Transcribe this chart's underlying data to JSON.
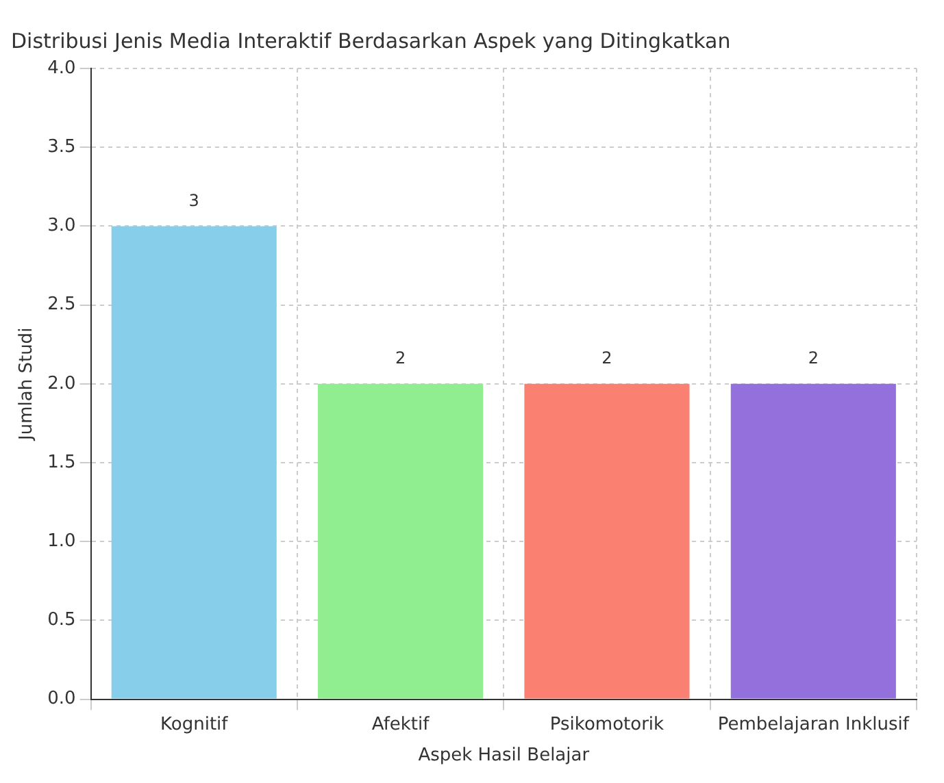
{
  "chart_data": {
    "type": "bar",
    "title": "Distribusi Jenis Media Interaktif Berdasarkan Aspek yang Ditingkatkan",
    "xlabel": "Aspek Hasil Belajar",
    "ylabel": "Jumlah Studi",
    "categories": [
      "Kognitif",
      "Afektif",
      "Psikomotorik",
      "Pembelajaran Inklusif"
    ],
    "values": [
      3,
      2,
      2,
      2
    ],
    "colors": [
      "#87ceeb",
      "#90ee90",
      "#fa8072",
      "#9370db"
    ],
    "ylim": [
      0,
      4
    ],
    "yticks": [
      {
        "value": 0,
        "label": "0.0"
      },
      {
        "value": 0.5,
        "label": "0.5"
      },
      {
        "value": 1,
        "label": "1.0"
      },
      {
        "value": 1.5,
        "label": "1.5"
      },
      {
        "value": 2,
        "label": "2.0"
      },
      {
        "value": 2.5,
        "label": "2.5"
      },
      {
        "value": 3,
        "label": "3.0"
      },
      {
        "value": 3.5,
        "label": "3.5"
      },
      {
        "value": 4,
        "label": "4.0"
      }
    ],
    "grid": true,
    "data_labels": true
  }
}
